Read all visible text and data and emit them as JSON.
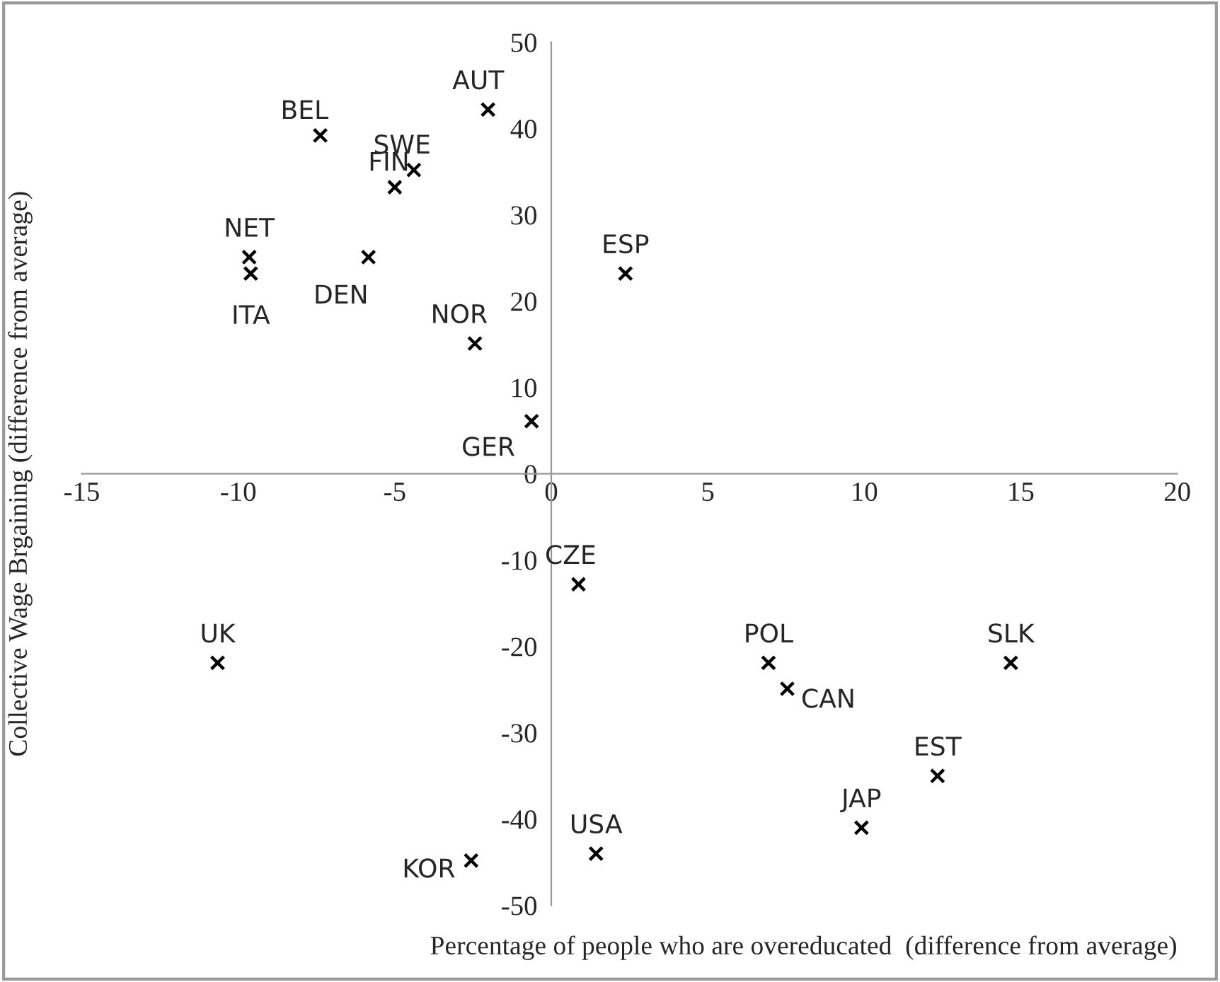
{
  "chart_data": {
    "type": "scatter",
    "xlabel": "Percentage of people who are overeducated  (difference from average)",
    "ylabel": "Collective Wage Brgaining (difference from average)",
    "x": [
      -2.02,
      -7.38,
      -4.39,
      -5.0,
      -9.65,
      -9.6,
      -5.84,
      -2.44,
      -0.63,
      2.37,
      0.87,
      -10.66,
      -2.56,
      1.43,
      6.94,
      7.54,
      14.68,
      12.34,
      9.91
    ],
    "series": [
      {
        "color": "#000000",
        "values": [
          42.2,
          39.2,
          35.2,
          33.2,
          25.1,
          23.2,
          25.1,
          15.1,
          6.1,
          23.2,
          -12.8,
          -21.9,
          -44.8,
          -44.0,
          -21.9,
          -24.9,
          -21.9,
          -35.0,
          -41.0
        ]
      }
    ],
    "marker": "cross",
    "annotations": [
      {
        "text": "AUT",
        "x": -2.02,
        "y": 42.2
      },
      {
        "text": "BEL",
        "x": -7.38,
        "y": 39.2
      },
      {
        "text": "SWE",
        "x": -4.39,
        "y": 35.2
      },
      {
        "text": "FIN",
        "x": -5.0,
        "y": 33.2
      },
      {
        "text": "NET",
        "x": -9.65,
        "y": 25.1
      },
      {
        "text": "ITA",
        "x": -9.6,
        "y": 23.2
      },
      {
        "text": "DEN",
        "x": -5.84,
        "y": 25.1
      },
      {
        "text": "NOR",
        "x": -2.44,
        "y": 15.1
      },
      {
        "text": "GER",
        "x": -0.63,
        "y": 6.1
      },
      {
        "text": "ESP",
        "x": 2.37,
        "y": 23.2
      },
      {
        "text": "CZE",
        "x": 0.87,
        "y": -12.8
      },
      {
        "text": "UK",
        "x": -10.66,
        "y": -21.9
      },
      {
        "text": "KOR",
        "x": -2.56,
        "y": -44.8
      },
      {
        "text": "USA",
        "x": 1.43,
        "y": -44.0
      },
      {
        "text": "POL",
        "x": 6.94,
        "y": -21.9
      },
      {
        "text": "CAN",
        "x": 7.54,
        "y": -24.9
      },
      {
        "text": "SLK",
        "x": 14.68,
        "y": -21.9
      },
      {
        "text": "EST",
        "x": 12.34,
        "y": -35.0
      },
      {
        "text": "JAP",
        "x": 9.91,
        "y": -41.0
      }
    ],
    "xlim": [
      -15,
      20
    ],
    "xticks": [
      -15,
      -10,
      -5,
      0,
      5,
      10,
      15,
      20
    ],
    "ylim": [
      -50,
      50
    ],
    "yticks": [
      -50,
      -40,
      -30,
      -20,
      -10,
      0,
      10,
      20,
      30,
      40,
      50
    ],
    "grid": false,
    "legend": false
  }
}
